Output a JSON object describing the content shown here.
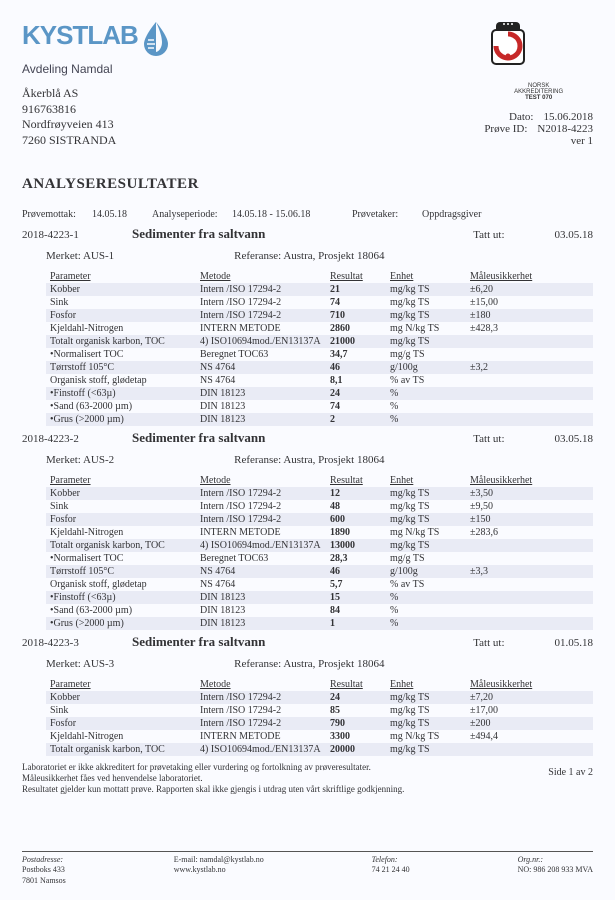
{
  "header": {
    "logo_text": "KYSTLAB",
    "logo_color": "#5b96c6",
    "avdeling": "Avdeling Namdal",
    "addr_name": "Åkerblå AS",
    "addr_org": "916763816",
    "addr_street": "Nordfrøyveien 413",
    "addr_city": "7260  SISTRANDA",
    "accr_line1": "NORSK",
    "accr_line2": "AKKREDITERING",
    "accr_line3": "TEST 070",
    "dato_label": "Dato:",
    "dato_value": "15.06.2018",
    "prove_label": "Prøve ID:",
    "prove_value": "N2018-4223",
    "ver": "ver 1",
    "crown_color": "#222",
    "accr_red": "#c62828"
  },
  "title": "ANALYSERESULTATER",
  "meta": {
    "m1l": "Prøvemottak:",
    "m1v": "14.05.18",
    "m2l": "Analyseperiode:",
    "m2v": "14.05.18 - 15.06.18",
    "m3l": "Prøvetaker:",
    "m3v": "Oppdragsgiver"
  },
  "columns": {
    "p": "Parameter",
    "m": "Metode",
    "r": "Resultat",
    "e": "Enhet",
    "u": "Måleusikkerhet"
  },
  "sections": [
    {
      "id": "2018-4223-1",
      "title": "Sedimenter fra saltvann",
      "tatt_label": "Tatt ut:",
      "tatt": "03.05.18",
      "merket_label": "Merket:",
      "merket": "AUS-1",
      "ref_label": "Referanse:",
      "ref": "Austra, Prosjekt 18064",
      "rows": [
        {
          "p": "Kobber",
          "m": "Intern /ISO 17294-2",
          "r": "21",
          "e": "mg/kg TS",
          "u": "±6,20",
          "z": 1
        },
        {
          "p": "Sink",
          "m": "Intern /ISO 17294-2",
          "r": "74",
          "e": "mg/kg TS",
          "u": "±15,00",
          "z": 0
        },
        {
          "p": "Fosfor",
          "m": "Intern /ISO 17294-2",
          "r": "710",
          "e": "mg/kg TS",
          "u": "±180",
          "z": 1
        },
        {
          "p": "Kjeldahl-Nitrogen",
          "m": "INTERN METODE",
          "r": "2860",
          "e": "mg N/kg TS",
          "u": "±428,3",
          "z": 0
        },
        {
          "p": "Totalt organisk karbon, TOC",
          "m": "4)  ISO10694mod./EN13137A",
          "r": "21000",
          "e": "mg/kg TS",
          "u": "",
          "z": 1
        },
        {
          "p": "•Normalisert TOC",
          "m": "Beregnet TOC63",
          "r": "34,7",
          "e": "mg/g TS",
          "u": "",
          "z": 0
        },
        {
          "p": "Tørrstoff 105°C",
          "m": "NS 4764",
          "r": "46",
          "e": "g/100g",
          "u": "±3,2",
          "z": 1
        },
        {
          "p": "Organisk stoff, glødetap",
          "m": "NS 4764",
          "r": "8,1",
          "e": "% av TS",
          "u": "",
          "z": 0
        },
        {
          "p": "•Finstoff (<63µ)",
          "m": "DIN 18123",
          "r": "24",
          "e": "%",
          "u": "",
          "z": 1
        },
        {
          "p": "•Sand (63-2000 µm)",
          "m": "DIN 18123",
          "r": "74",
          "e": "%",
          "u": "",
          "z": 0
        },
        {
          "p": "•Grus (>2000 µm)",
          "m": "DIN 18123",
          "r": "2",
          "e": "%",
          "u": "",
          "z": 1
        }
      ]
    },
    {
      "id": "2018-4223-2",
      "title": "Sedimenter fra saltvann",
      "tatt_label": "Tatt ut:",
      "tatt": "03.05.18",
      "merket_label": "Merket:",
      "merket": "AUS-2",
      "ref_label": "Referanse:",
      "ref": "Austra, Prosjekt 18064",
      "rows": [
        {
          "p": "Kobber",
          "m": "Intern /ISO 17294-2",
          "r": "12",
          "e": "mg/kg TS",
          "u": "±3,50",
          "z": 1
        },
        {
          "p": "Sink",
          "m": "Intern /ISO 17294-2",
          "r": "48",
          "e": "mg/kg TS",
          "u": "±9,50",
          "z": 0
        },
        {
          "p": "Fosfor",
          "m": "Intern /ISO 17294-2",
          "r": "600",
          "e": "mg/kg TS",
          "u": "±150",
          "z": 1
        },
        {
          "p": "Kjeldahl-Nitrogen",
          "m": "INTERN METODE",
          "r": "1890",
          "e": "mg N/kg TS",
          "u": "±283,6",
          "z": 0
        },
        {
          "p": "Totalt organisk karbon, TOC",
          "m": "4)  ISO10694mod./EN13137A",
          "r": "13000",
          "e": "mg/kg TS",
          "u": "",
          "z": 1
        },
        {
          "p": "•Normalisert TOC",
          "m": "Beregnet TOC63",
          "r": "28,3",
          "e": "mg/g TS",
          "u": "",
          "z": 0
        },
        {
          "p": "Tørrstoff 105°C",
          "m": "NS 4764",
          "r": "46",
          "e": "g/100g",
          "u": "±3,3",
          "z": 1
        },
        {
          "p": "Organisk stoff, glødetap",
          "m": "NS 4764",
          "r": "5,7",
          "e": "% av TS",
          "u": "",
          "z": 0
        },
        {
          "p": "•Finstoff (<63µ)",
          "m": "DIN 18123",
          "r": "15",
          "e": "%",
          "u": "",
          "z": 1
        },
        {
          "p": "•Sand (63-2000 µm)",
          "m": "DIN 18123",
          "r": "84",
          "e": "%",
          "u": "",
          "z": 0
        },
        {
          "p": "•Grus (>2000 µm)",
          "m": "DIN 18123",
          "r": "1",
          "e": "%",
          "u": "",
          "z": 1
        }
      ]
    },
    {
      "id": "2018-4223-3",
      "title": "Sedimenter fra saltvann",
      "tatt_label": "Tatt ut:",
      "tatt": "01.05.18",
      "merket_label": "Merket:",
      "merket": "AUS-3",
      "ref_label": "Referanse:",
      "ref": "Austra, Prosjekt 18064",
      "rows": [
        {
          "p": "Kobber",
          "m": "Intern /ISO 17294-2",
          "r": "24",
          "e": "mg/kg TS",
          "u": "±7,20",
          "z": 1
        },
        {
          "p": "Sink",
          "m": "Intern /ISO 17294-2",
          "r": "85",
          "e": "mg/kg TS",
          "u": "±17,00",
          "z": 0
        },
        {
          "p": "Fosfor",
          "m": "Intern /ISO 17294-2",
          "r": "790",
          "e": "mg/kg TS",
          "u": "±200",
          "z": 1
        },
        {
          "p": "Kjeldahl-Nitrogen",
          "m": "INTERN METODE",
          "r": "3300",
          "e": "mg N/kg TS",
          "u": "±494,4",
          "z": 0
        },
        {
          "p": "Totalt organisk karbon, TOC",
          "m": "4)  ISO10694mod./EN13137A",
          "r": "20000",
          "e": "mg/kg TS",
          "u": "",
          "z": 1
        }
      ]
    }
  ],
  "footnotes": {
    "l1": "Laboratoriet er ikke akkreditert for prøvetaking eller vurdering og fortolkning av prøveresultater.",
    "l2": "Måleusikkerhet fåes ved henvendelse laboratoriet.",
    "l3": "Resultatet gjelder kun mottatt prøve. Rapporten skal ikke gjengis i utdrag uten vårt skriftlige godkjenning."
  },
  "page_num": "Side 1 av 2",
  "footer": {
    "post_label": "Postadresse:",
    "post1": "Postboks 433",
    "post2": "7801  Namsos",
    "email_label": "E-mail:",
    "email": "namdal@kystlab.no",
    "web": "www.kystlab.no",
    "tel_label": "Telefon:",
    "tel": "74 21 24 40",
    "org_label": "Org.nr.:",
    "org": "NO: 986 208 933 MVA"
  },
  "style": {
    "zebra_color": "#e9ebf5",
    "text_color": "#333336"
  }
}
